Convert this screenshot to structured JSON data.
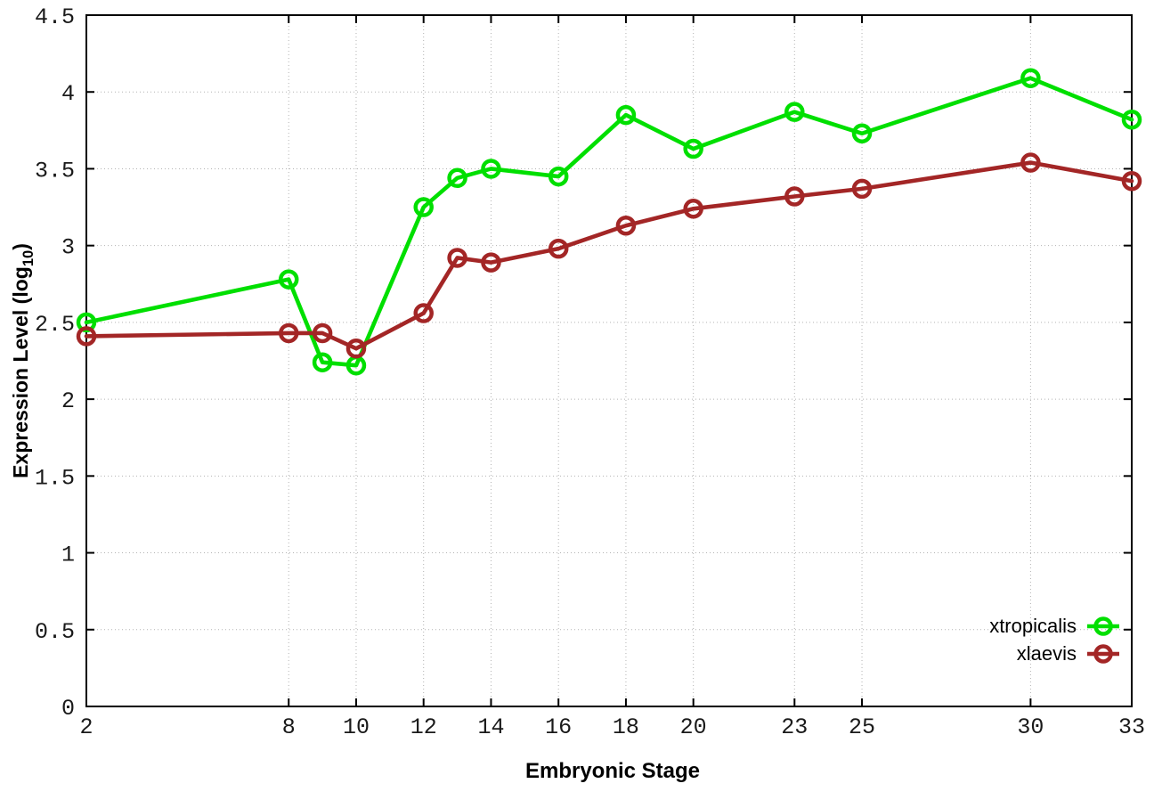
{
  "chart_data": {
    "type": "line",
    "title": "",
    "xlabel": "Embryonic Stage",
    "ylabel": "Expression Level (log10)",
    "ylabel_parts": {
      "prefix": "Expression Level (log",
      "sub": "10",
      "suffix": ")"
    },
    "xlim": [
      2,
      33
    ],
    "ylim": [
      0,
      4.5
    ],
    "grid": true,
    "legend_position": "inside-bottom-right",
    "x": [
      2,
      8,
      9,
      10,
      12,
      13,
      14,
      16,
      18,
      20,
      23,
      25,
      30,
      33
    ],
    "xticks": [
      2,
      8,
      10,
      12,
      14,
      16,
      18,
      20,
      23,
      25,
      30,
      33
    ],
    "xtick_labels": [
      "2",
      "8",
      "10",
      "12",
      "14",
      "16",
      "18",
      "20",
      "23",
      "25",
      "30",
      "33"
    ],
    "yticks": [
      0,
      0.5,
      1,
      1.5,
      2,
      2.5,
      3,
      3.5,
      4,
      4.5
    ],
    "ytick_labels": [
      "0",
      "0.5",
      "1",
      "1.5",
      "2",
      "2.5",
      "3",
      "3.5",
      "4",
      "4.5"
    ],
    "series": [
      {
        "name": "xtropicalis",
        "color": "#00df00",
        "values": [
          2.5,
          2.78,
          2.24,
          2.22,
          3.25,
          3.44,
          3.5,
          3.45,
          3.85,
          3.63,
          3.87,
          3.73,
          4.09,
          3.82
        ]
      },
      {
        "name": "xlaevis",
        "color": "#a32626",
        "values": [
          2.41,
          2.43,
          2.43,
          2.33,
          2.56,
          2.92,
          2.89,
          2.98,
          3.13,
          3.24,
          3.32,
          3.37,
          3.54,
          3.42
        ]
      }
    ]
  },
  "style": {
    "background": "#ffffff",
    "border_color": "#000000",
    "grid_color": "#b3b3b3",
    "tick_color": "#000000",
    "tick_label_color": "#1a1a1a",
    "text_color": "#000000"
  }
}
